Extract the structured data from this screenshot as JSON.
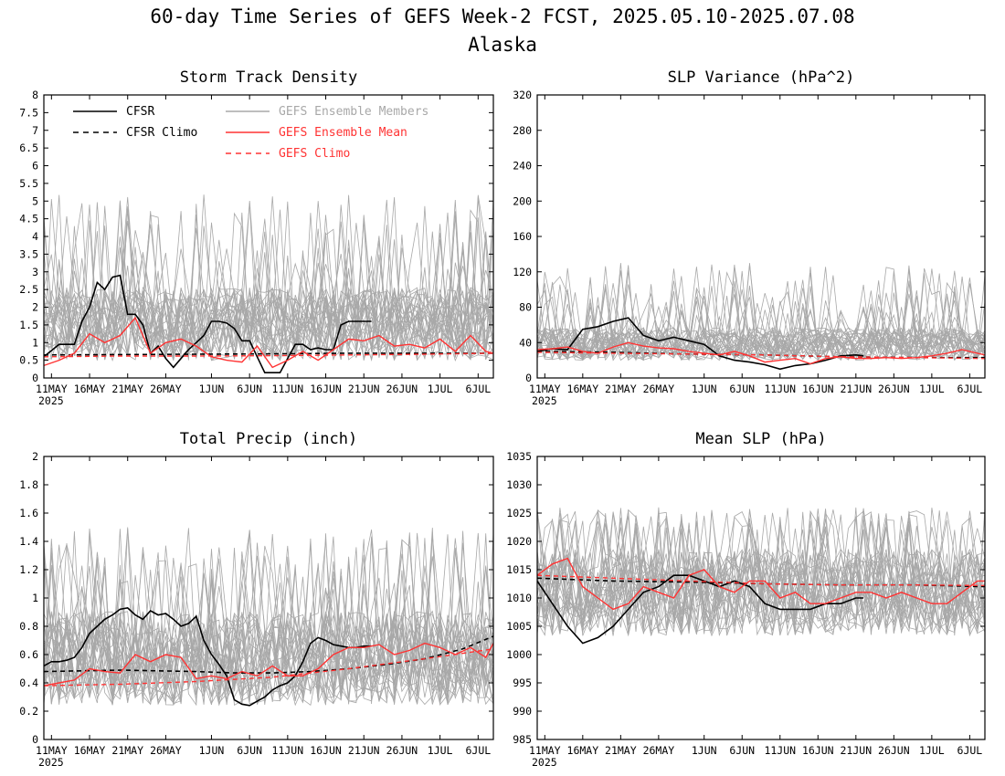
{
  "figure": {
    "title": "60-day Time Series of GEFS Week-2 FCST, 2025.05.10-2025.07.08",
    "subtitle": "Alaska"
  },
  "legend": {
    "cfsr": "CFSR",
    "cfsr_climo": "CFSR Climo",
    "gefs_members": "GEFS Ensemble Members",
    "gefs_mean": "GEFS Ensemble Mean",
    "gefs_climo": "GEFS Climo"
  },
  "colors": {
    "cfsr": "#000000",
    "gefs_mean": "#ff3333",
    "gefs_members": "#a8a8a8",
    "gefs_climo": "#ff3333"
  },
  "x_axis": {
    "tick_labels": [
      "11MAY",
      "16MAY",
      "21MAY",
      "26MAY",
      "1JUN",
      "6JUN",
      "11JUN",
      "16JUN",
      "21JUN",
      "26JUN",
      "1JUL",
      "6JUL"
    ],
    "tick_days": [
      1,
      6,
      11,
      16,
      22,
      27,
      32,
      37,
      42,
      47,
      52,
      57
    ],
    "year_label": "2025",
    "range_days": [
      0,
      59
    ]
  },
  "chart_data": [
    {
      "type": "line",
      "title": "Storm Track Density",
      "ylim": [
        0,
        8
      ],
      "yticks": [
        "0",
        "0.5",
        "1",
        "1.5",
        "2",
        "2.5",
        "3",
        "3.5",
        "4",
        "4.5",
        "5",
        "5.5",
        "6",
        "6.5",
        "7",
        "7.5",
        "8"
      ],
      "ensemble": {
        "min_base": 0.05,
        "max_base": 3.0,
        "spread_max": 5.2,
        "count": 30
      },
      "series": [
        {
          "name": "CFSR",
          "x": [
            0,
            2,
            4,
            5,
            6,
            7,
            8,
            9,
            10,
            11,
            12,
            13,
            14,
            15,
            16,
            17,
            18,
            19,
            20,
            21,
            22,
            23,
            24,
            25,
            26,
            27,
            28,
            29,
            30,
            31,
            32,
            33,
            34,
            35,
            36,
            37,
            38,
            39,
            40,
            41,
            42,
            43
          ],
          "y": [
            0.6,
            0.95,
            0.95,
            1.6,
            2.0,
            2.7,
            2.5,
            2.85,
            2.9,
            1.8,
            1.8,
            1.5,
            0.7,
            0.9,
            0.55,
            0.3,
            0.55,
            0.8,
            1.0,
            1.2,
            1.6,
            1.6,
            1.55,
            1.4,
            1.05,
            1.05,
            0.6,
            0.15,
            0.15,
            0.15,
            0.55,
            0.95,
            0.95,
            0.8,
            0.85,
            0.8,
            0.8,
            1.5,
            1.6,
            1.6,
            1.6,
            1.6
          ]
        },
        {
          "name": "CFSR Climo",
          "x": [
            0,
            10,
            20,
            30,
            40,
            50,
            59
          ],
          "y": [
            0.65,
            0.66,
            0.67,
            0.68,
            0.7,
            0.7,
            0.7
          ]
        },
        {
          "name": "GEFS Ensemble Mean",
          "x": [
            0,
            2,
            4,
            6,
            8,
            10,
            12,
            14,
            16,
            18,
            20,
            22,
            24,
            26,
            28,
            30,
            32,
            34,
            36,
            38,
            40,
            42,
            44,
            46,
            48,
            50,
            52,
            54,
            56,
            58,
            59
          ],
          "y": [
            0.35,
            0.5,
            0.7,
            1.25,
            1.0,
            1.2,
            1.7,
            0.7,
            1.0,
            1.1,
            0.9,
            0.6,
            0.5,
            0.45,
            0.9,
            0.3,
            0.5,
            0.75,
            0.5,
            0.8,
            1.1,
            1.05,
            1.2,
            0.9,
            0.95,
            0.85,
            1.1,
            0.75,
            1.2,
            0.75,
            0.7
          ]
        },
        {
          "name": "GEFS Climo",
          "x": [
            0,
            10,
            20,
            30,
            40,
            50,
            59
          ],
          "y": [
            0.6,
            0.62,
            0.62,
            0.63,
            0.65,
            0.67,
            0.7
          ]
        }
      ]
    },
    {
      "type": "line",
      "title": "SLP Variance (hPa^2)",
      "ylim": [
        0,
        320
      ],
      "yticks": [
        "0",
        "40",
        "80",
        "120",
        "160",
        "200",
        "240",
        "280",
        "320"
      ],
      "ensemble": {
        "min_base": 12,
        "max_base": 65,
        "spread_max": 130,
        "count": 30
      },
      "series": [
        {
          "name": "CFSR",
          "x": [
            0,
            2,
            4,
            6,
            8,
            10,
            12,
            14,
            16,
            18,
            20,
            22,
            24,
            26,
            28,
            30,
            32,
            34,
            36,
            38,
            40,
            42,
            43
          ],
          "y": [
            30,
            33,
            32,
            55,
            58,
            64,
            68,
            48,
            42,
            46,
            42,
            38,
            25,
            20,
            18,
            15,
            10,
            14,
            16,
            20,
            25,
            26,
            25
          ]
        },
        {
          "name": "CFSR Climo",
          "x": [
            0,
            10,
            20,
            30,
            40,
            50,
            59
          ],
          "y": [
            30,
            29,
            27,
            26,
            24,
            23,
            23
          ]
        },
        {
          "name": "GEFS Ensemble Mean",
          "x": [
            0,
            2,
            4,
            6,
            8,
            10,
            12,
            14,
            16,
            18,
            20,
            22,
            24,
            26,
            28,
            30,
            32,
            34,
            36,
            38,
            40,
            42,
            44,
            46,
            48,
            50,
            52,
            54,
            56,
            58,
            59
          ],
          "y": [
            32,
            33,
            35,
            30,
            28,
            35,
            40,
            36,
            34,
            33,
            30,
            28,
            26,
            30,
            25,
            18,
            20,
            22,
            16,
            22,
            24,
            22,
            22,
            23,
            22,
            23,
            25,
            28,
            32,
            28,
            26
          ]
        },
        {
          "name": "GEFS Climo",
          "x": [
            0,
            10,
            20,
            30,
            40,
            50,
            59
          ],
          "y": [
            29,
            28,
            27,
            26,
            24,
            23,
            22
          ]
        }
      ]
    },
    {
      "type": "line",
      "title": "Total Precip (inch)",
      "ylim": [
        0,
        2
      ],
      "yticks": [
        "0",
        "0.2",
        "0.4",
        "0.6",
        "0.8",
        "1",
        "1.2",
        "1.4",
        "1.6",
        "1.8",
        "2"
      ],
      "ensemble": {
        "min_base": 0.1,
        "max_base": 1.05,
        "spread_max": 1.5,
        "count": 30
      },
      "series": [
        {
          "name": "CFSR",
          "x": [
            0,
            1,
            2,
            3,
            4,
            5,
            6,
            7,
            8,
            9,
            10,
            11,
            12,
            13,
            14,
            15,
            16,
            17,
            18,
            19,
            20,
            21,
            22,
            23,
            24,
            25,
            26,
            27,
            28,
            29,
            30,
            31,
            32,
            33,
            34,
            35,
            36,
            37,
            38,
            39,
            40,
            41,
            42,
            43
          ],
          "y": [
            0.52,
            0.55,
            0.55,
            0.56,
            0.58,
            0.65,
            0.75,
            0.8,
            0.85,
            0.88,
            0.92,
            0.93,
            0.88,
            0.85,
            0.91,
            0.88,
            0.89,
            0.85,
            0.8,
            0.82,
            0.87,
            0.7,
            0.6,
            0.53,
            0.45,
            0.28,
            0.25,
            0.24,
            0.27,
            0.3,
            0.35,
            0.38,
            0.4,
            0.45,
            0.55,
            0.68,
            0.72,
            0.7,
            0.67,
            0.66,
            0.65,
            0.65,
            0.66,
            0.66
          ]
        },
        {
          "name": "CFSR Climo",
          "x": [
            0,
            10,
            20,
            25,
            30,
            35,
            40,
            45,
            50,
            55,
            59
          ],
          "y": [
            0.48,
            0.49,
            0.48,
            0.47,
            0.47,
            0.48,
            0.5,
            0.53,
            0.57,
            0.64,
            0.73
          ]
        },
        {
          "name": "GEFS Ensemble Mean",
          "x": [
            0,
            2,
            4,
            6,
            8,
            10,
            12,
            14,
            16,
            18,
            20,
            22,
            24,
            26,
            28,
            30,
            32,
            34,
            36,
            38,
            40,
            42,
            44,
            46,
            48,
            50,
            52,
            54,
            56,
            58,
            59
          ],
          "y": [
            0.38,
            0.4,
            0.42,
            0.5,
            0.48,
            0.47,
            0.6,
            0.55,
            0.6,
            0.58,
            0.43,
            0.45,
            0.43,
            0.48,
            0.45,
            0.52,
            0.45,
            0.45,
            0.5,
            0.6,
            0.65,
            0.65,
            0.67,
            0.6,
            0.63,
            0.68,
            0.65,
            0.6,
            0.65,
            0.58,
            0.68
          ]
        },
        {
          "name": "GEFS Climo",
          "x": [
            0,
            10,
            20,
            30,
            40,
            50,
            59
          ],
          "y": [
            0.38,
            0.39,
            0.41,
            0.44,
            0.5,
            0.57,
            0.64
          ]
        }
      ]
    },
    {
      "type": "line",
      "title": "Mean SLP (hPa)",
      "ylim": [
        985,
        1035
      ],
      "yticks": [
        "985",
        "990",
        "995",
        "1000",
        "1005",
        "1010",
        "1015",
        "1020",
        "1025",
        "1030",
        "1035"
      ],
      "ensemble": {
        "min_base": 1000,
        "max_base": 1022,
        "spread_max": 1026,
        "count": 30
      },
      "series": [
        {
          "name": "CFSR",
          "x": [
            0,
            2,
            4,
            6,
            8,
            10,
            12,
            14,
            16,
            18,
            20,
            22,
            24,
            26,
            28,
            30,
            32,
            34,
            36,
            38,
            40,
            42,
            43
          ],
          "y": [
            1013,
            1009,
            1005,
            1002,
            1003,
            1005,
            1008,
            1011,
            1012,
            1014,
            1014,
            1013,
            1012,
            1013,
            1012,
            1009,
            1008,
            1008,
            1008,
            1009,
            1009,
            1010,
            1010
          ]
        },
        {
          "name": "CFSR Climo",
          "x": [
            0,
            10,
            20,
            30,
            40,
            50,
            59
          ],
          "y": [
            1013.5,
            1013,
            1012.8,
            1012.5,
            1012.3,
            1012.3,
            1012
          ]
        },
        {
          "name": "GEFS Ensemble Mean",
          "x": [
            0,
            2,
            4,
            6,
            8,
            10,
            12,
            14,
            16,
            18,
            20,
            22,
            24,
            26,
            28,
            30,
            32,
            34,
            36,
            38,
            40,
            42,
            44,
            46,
            48,
            50,
            52,
            54,
            56,
            58,
            59
          ],
          "y": [
            1014,
            1016,
            1017,
            1012,
            1010,
            1008,
            1009,
            1012,
            1011,
            1010,
            1014,
            1015,
            1012,
            1011,
            1013,
            1013,
            1010,
            1011,
            1009,
            1009,
            1010,
            1011,
            1011,
            1010,
            1011,
            1010,
            1009,
            1009,
            1011,
            1013,
            1013
          ]
        },
        {
          "name": "GEFS Climo",
          "x": [
            0,
            10,
            20,
            30,
            40,
            50,
            59
          ],
          "y": [
            1014,
            1013.5,
            1013,
            1012.5,
            1012.3,
            1012.3,
            1012.2
          ]
        }
      ]
    }
  ]
}
